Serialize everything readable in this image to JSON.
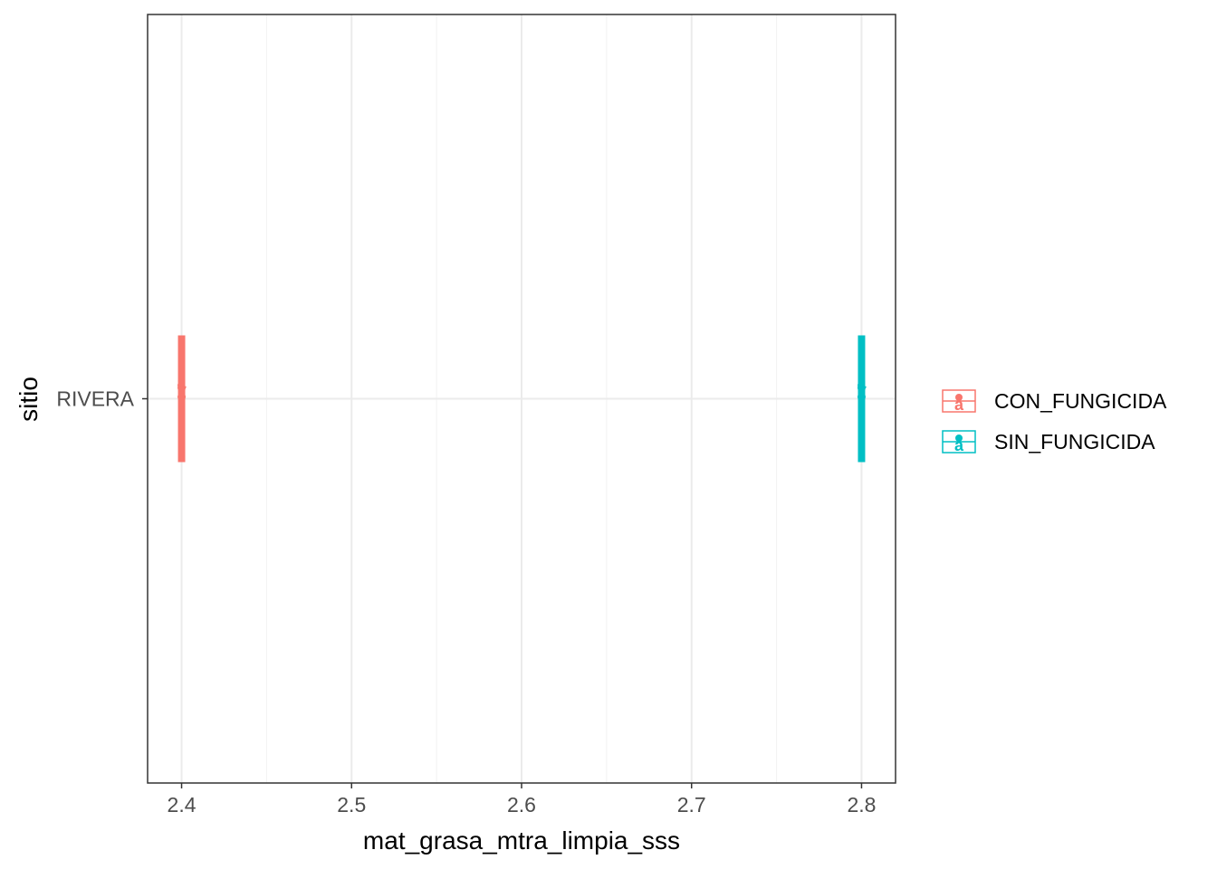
{
  "chart_data": {
    "type": "scatter",
    "xlabel": "mat_grasa_mtra_limpia_sss",
    "ylabel": "sitio",
    "categories": [
      "RIVERA"
    ],
    "xlim": [
      2.38,
      2.82
    ],
    "xticks": [
      2.4,
      2.5,
      2.6,
      2.7,
      2.8
    ],
    "xtick_labels": [
      "2.4",
      "2.5",
      "2.6",
      "2.7",
      "2.8"
    ],
    "grid": true,
    "legend_position": "right",
    "series": [
      {
        "name": "CON_FUNGICIDA",
        "color": "#F8766D",
        "points": [
          {
            "y": "RIVERA",
            "x": 2.4,
            "label": "a",
            "lower": 2.4,
            "upper": 2.4
          }
        ]
      },
      {
        "name": "SIN_FUNGICIDA",
        "color": "#00BFC4",
        "points": [
          {
            "y": "RIVERA",
            "x": 2.8,
            "label": "a",
            "lower": 2.8,
            "upper": 2.8
          }
        ]
      }
    ]
  }
}
